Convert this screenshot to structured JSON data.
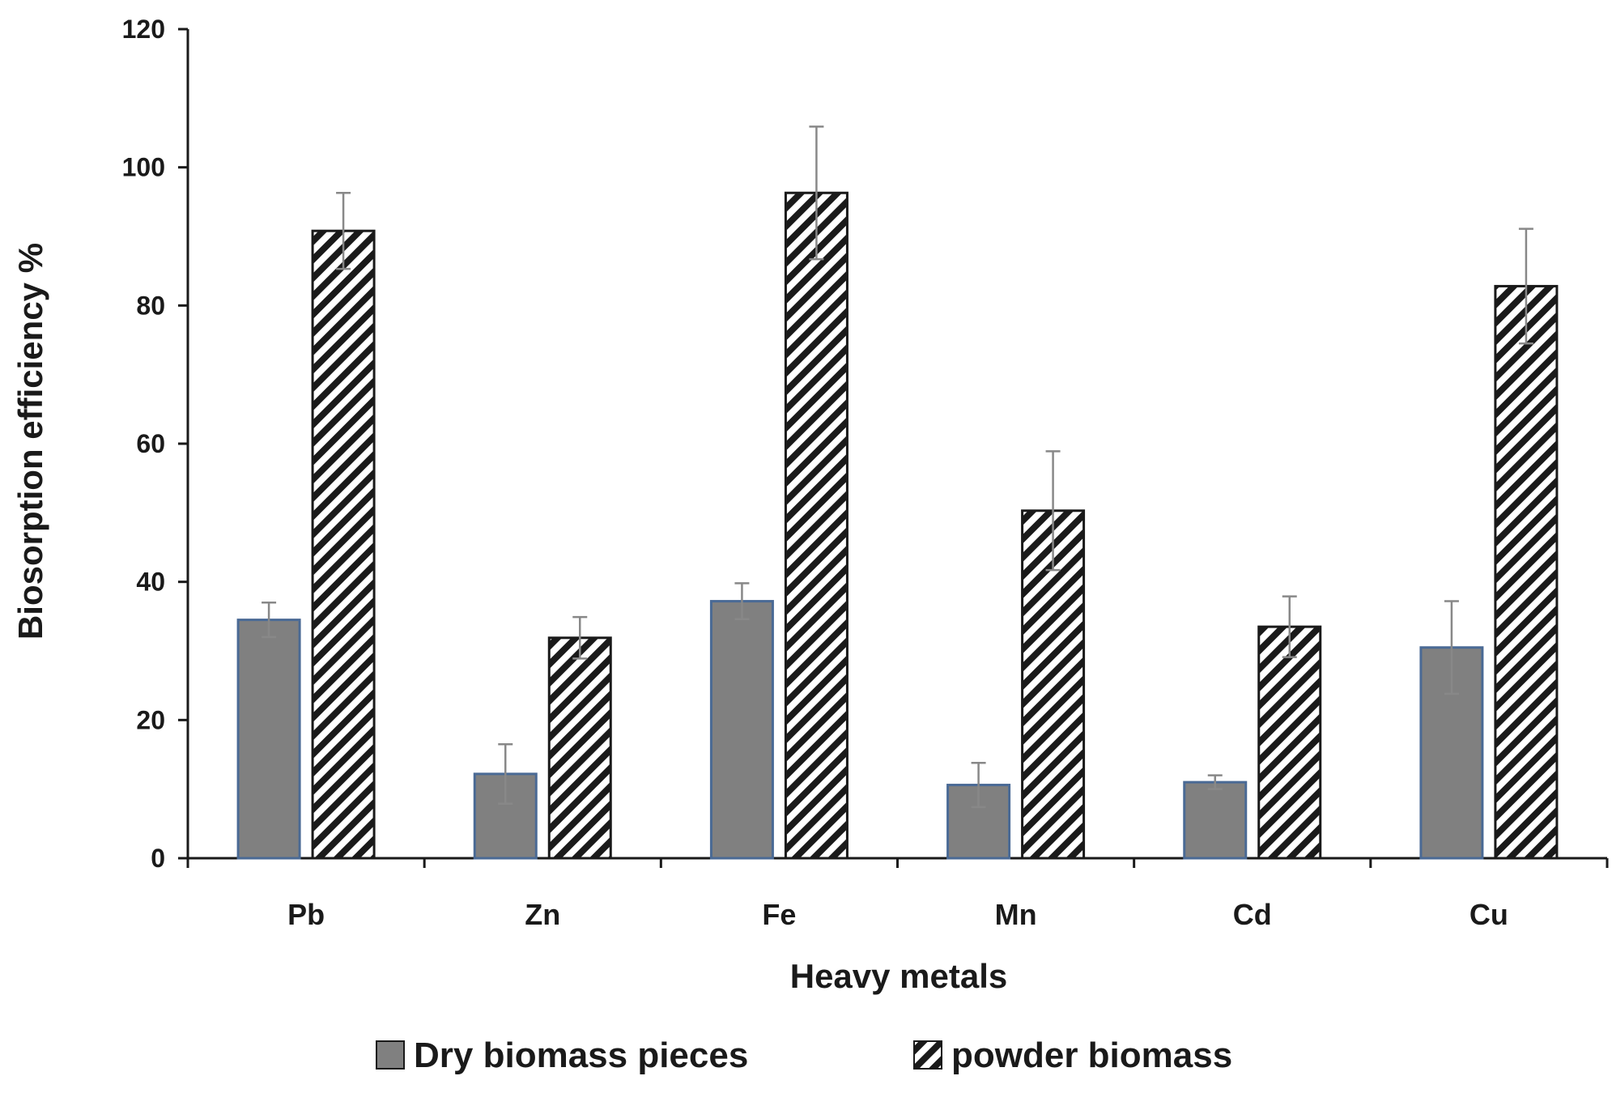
{
  "chart_data": {
    "type": "bar",
    "title": "",
    "xlabel": "Heavy metals",
    "ylabel": "Biosorption efficiency %",
    "ylim": [
      0,
      120
    ],
    "yticks": [
      0,
      20,
      40,
      60,
      80,
      100,
      120
    ],
    "categories": [
      "Pb",
      "Zn",
      "Fe",
      "Mn",
      "Cd",
      "Cu"
    ],
    "series": [
      {
        "name": "Dry biomass pieces",
        "values": [
          34.5,
          12.2,
          37.2,
          10.6,
          11.0,
          30.5
        ],
        "errors": [
          2.5,
          4.3,
          2.6,
          3.2,
          1.0,
          6.7
        ],
        "fill": "#808080",
        "stroke": "#4a6a95",
        "pattern": "solid"
      },
      {
        "name": "powder biomass",
        "values": [
          90.8,
          31.9,
          96.3,
          50.3,
          33.5,
          82.8
        ],
        "errors": [
          5.5,
          3.0,
          9.6,
          8.6,
          4.4,
          8.3
        ],
        "fill": "#ffffff",
        "stroke": "#1a1a1a",
        "pattern": "diagonal-hatch"
      }
    ],
    "grid": false,
    "legend_position": "bottom"
  }
}
